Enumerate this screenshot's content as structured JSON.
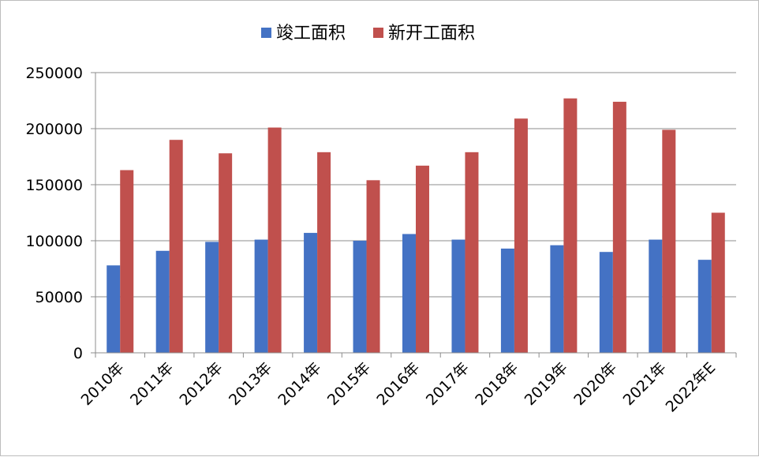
{
  "chart_data": {
    "type": "bar",
    "title": "",
    "xlabel": "",
    "ylabel": "",
    "categories": [
      "2010年",
      "2011年",
      "2012年",
      "2013年",
      "2014年",
      "2015年",
      "2016年",
      "2017年",
      "2018年",
      "2019年",
      "2020年",
      "2021年",
      "2022年E"
    ],
    "series": [
      {
        "name": "竣工面积",
        "color": "#4472C4",
        "values": [
          78000,
          91000,
          99000,
          101000,
          107000,
          100000,
          106000,
          101000,
          93000,
          96000,
          90000,
          101000,
          83000
        ]
      },
      {
        "name": "新开工面积",
        "color": "#C0504D",
        "values": [
          163000,
          190000,
          178000,
          201000,
          179000,
          154000,
          167000,
          179000,
          209000,
          227000,
          224000,
          199000,
          125000
        ]
      }
    ],
    "ylim": [
      0,
      250000
    ],
    "yticks": [
      0,
      50000,
      100000,
      150000,
      200000,
      250000
    ],
    "grid": true,
    "legend_position": "top-center"
  }
}
